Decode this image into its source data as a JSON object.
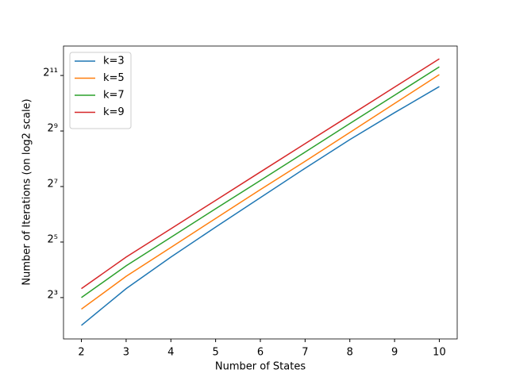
{
  "chart_data": {
    "type": "line",
    "xlabel": "Number of States",
    "ylabel": "Number of Iterations (on log2 scale)",
    "x": [
      2,
      3,
      4,
      5,
      6,
      7,
      8,
      9,
      10
    ],
    "series": [
      {
        "name": "k=3",
        "color": "#1f77b4",
        "values": [
          4,
          10,
          22,
          46.5,
          97,
          202,
          413,
          809,
          1552
        ]
      },
      {
        "name": "k=5",
        "color": "#ff7f0e",
        "values": [
          6,
          13.6,
          28,
          57.7,
          118.6,
          240,
          494,
          1017,
          2090
        ]
      },
      {
        "name": "k=7",
        "color": "#2ca02c",
        "values": [
          8,
          17.7,
          36,
          73.5,
          149,
          302,
          617,
          1250,
          2540
        ]
      },
      {
        "name": "k=9",
        "color": "#d62728",
        "values": [
          10,
          22,
          44.6,
          90.5,
          184,
          373,
          755,
          1530,
          3100
        ]
      }
    ],
    "xlim": [
      1.6,
      10.4
    ],
    "xticks": [
      2,
      3,
      4,
      5,
      6,
      7,
      8,
      9,
      10
    ],
    "ylim": [
      2.85,
      4270
    ],
    "yscale": "log2",
    "yticks": [
      {
        "value": 8,
        "label": "2³"
      },
      {
        "value": 32,
        "label": "2⁵"
      },
      {
        "value": 128,
        "label": "2⁷"
      },
      {
        "value": 512,
        "label": "2⁹"
      },
      {
        "value": 2048,
        "label": "2¹¹"
      }
    ],
    "legend": "upper left"
  }
}
